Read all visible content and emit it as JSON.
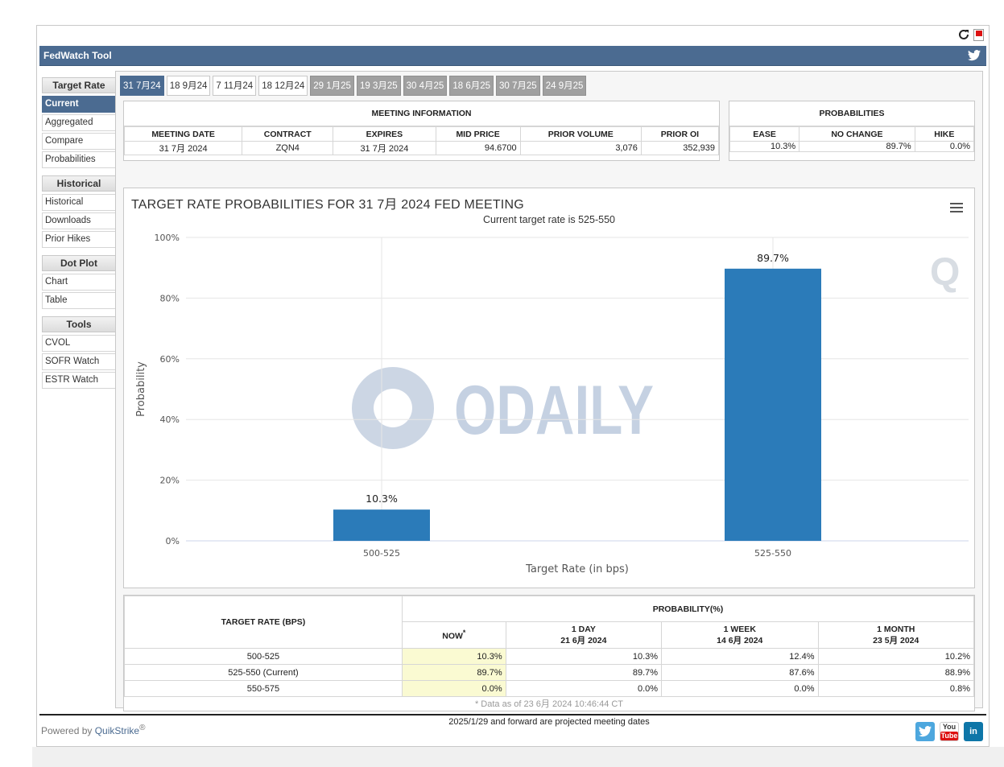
{
  "app": {
    "title": "FedWatch Tool"
  },
  "sidebar": {
    "sections": [
      {
        "heading": "Target Rate",
        "items": [
          {
            "label": "Current",
            "active": true
          },
          {
            "label": "Aggregated"
          },
          {
            "label": "Compare"
          },
          {
            "label": "Probabilities"
          }
        ]
      },
      {
        "heading": "Historical",
        "items": [
          {
            "label": "Historical"
          },
          {
            "label": "Downloads"
          },
          {
            "label": "Prior Hikes"
          }
        ]
      },
      {
        "heading": "Dot Plot",
        "items": [
          {
            "label": "Chart"
          },
          {
            "label": "Table"
          }
        ]
      },
      {
        "heading": "Tools",
        "items": [
          {
            "label": "CVOL"
          },
          {
            "label": "SOFR Watch"
          },
          {
            "label": "ESTR Watch"
          }
        ]
      }
    ]
  },
  "tabs": [
    {
      "label": "31 7月24",
      "state": "active"
    },
    {
      "label": "18 9月24",
      "state": "normal"
    },
    {
      "label": "7 11月24",
      "state": "normal"
    },
    {
      "label": "18 12月24",
      "state": "normal"
    },
    {
      "label": "29 1月25",
      "state": "dim"
    },
    {
      "label": "19 3月25",
      "state": "dim"
    },
    {
      "label": "30 4月25",
      "state": "dim"
    },
    {
      "label": "18 6月25",
      "state": "dim"
    },
    {
      "label": "30 7月25",
      "state": "dim"
    },
    {
      "label": "24 9月25",
      "state": "dim"
    }
  ],
  "meeting": {
    "caption": "MEETING INFORMATION",
    "headers": [
      "MEETING DATE",
      "CONTRACT",
      "EXPIRES",
      "MID PRICE",
      "PRIOR VOLUME",
      "PRIOR OI"
    ],
    "values": [
      "31 7月 2024",
      "ZQN4",
      "31 7月 2024",
      "94.6700",
      "3,076",
      "352,939"
    ]
  },
  "probabilities": {
    "caption": "PROBABILITIES",
    "headers": [
      "EASE",
      "NO CHANGE",
      "HIKE"
    ],
    "values": [
      "10.3%",
      "89.7%",
      "0.0%"
    ]
  },
  "chart_data": {
    "type": "bar",
    "title": "TARGET RATE PROBABILITIES FOR 31 7月 2024 FED MEETING",
    "subtitle": "Current target rate is 525-550",
    "categories": [
      "500-525",
      "525-550"
    ],
    "values": [
      10.3,
      89.7
    ],
    "data_labels": [
      "10.3%",
      "89.7%"
    ],
    "xlabel": "Target Rate (in bps)",
    "ylabel": "Probability",
    "ylim": [
      0,
      100
    ],
    "yticks": [
      "0%",
      "20%",
      "40%",
      "60%",
      "80%",
      "100%"
    ],
    "bar_color": "#2b7bb9",
    "grid": true
  },
  "prob_table": {
    "col_target": "TARGET RATE (BPS)",
    "col_group": "PROBABILITY(%)",
    "cols": [
      {
        "title": "NOW",
        "sup": "*",
        "date": ""
      },
      {
        "title": "1 DAY",
        "date": "21 6月 2024"
      },
      {
        "title": "1 WEEK",
        "date": "14 6月 2024"
      },
      {
        "title": "1 MONTH",
        "date": "23 5月 2024"
      }
    ],
    "rows": [
      {
        "rate": "500-525",
        "values": [
          "10.3%",
          "10.3%",
          "12.4%",
          "10.2%"
        ]
      },
      {
        "rate": "525-550 (Current)",
        "values": [
          "89.7%",
          "89.7%",
          "87.6%",
          "88.9%"
        ]
      },
      {
        "rate": "550-575",
        "values": [
          "0.0%",
          "0.0%",
          "0.0%",
          "0.8%"
        ]
      }
    ],
    "note": "* Data as of 23 6月 2024 10:46:44 CT"
  },
  "projected_note": "2025/1/29 and forward are projected meeting dates",
  "footer": {
    "powered_prefix": "Powered by ",
    "powered_brand": "QuikStrike",
    "reg": "®"
  },
  "watermarks": {
    "odaily": "ODAILY",
    "q": "Q"
  },
  "social": {
    "youtube_top": "You",
    "youtube_bottom": "Tube",
    "linkedin": "in"
  }
}
